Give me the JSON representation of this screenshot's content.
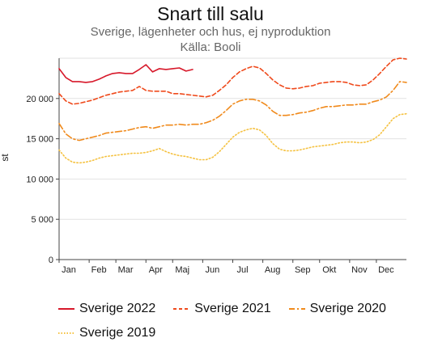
{
  "chart_data": {
    "type": "line",
    "title": "Snart till salu",
    "subtitle": "Sverige, lägenheter och hus, ej nyproduktion",
    "source": "Källa: Booli",
    "ylabel": "st",
    "xlabel": "",
    "ylim": [
      0,
      25000
    ],
    "yticks": [
      {
        "value": 0,
        "label": "0"
      },
      {
        "value": 5000,
        "label": "5 000"
      },
      {
        "value": 10000,
        "label": "10 000"
      },
      {
        "value": 15000,
        "label": "15 000"
      },
      {
        "value": 20000,
        "label": "20 000"
      }
    ],
    "xlim": [
      0,
      52
    ],
    "xticks": [
      {
        "value": 0,
        "label": "Jan"
      },
      {
        "value": 4.5,
        "label": "Feb"
      },
      {
        "value": 8.5,
        "label": "Mar"
      },
      {
        "value": 13,
        "label": "Apr"
      },
      {
        "value": 17,
        "label": "Maj"
      },
      {
        "value": 21.5,
        "label": "Jun"
      },
      {
        "value": 26,
        "label": "Jul"
      },
      {
        "value": 30.5,
        "label": "Aug"
      },
      {
        "value": 35,
        "label": "Sep"
      },
      {
        "value": 39,
        "label": "Okt"
      },
      {
        "value": 43.5,
        "label": "Nov"
      },
      {
        "value": 47.5,
        "label": "Dec"
      }
    ],
    "legend": "bottom",
    "series": [
      {
        "name": "Sverige 2022",
        "color": "#d7182a",
        "dash": "solid",
        "x": [
          0,
          1,
          2,
          3,
          4,
          5,
          6,
          7,
          8,
          9,
          10,
          11,
          12,
          13,
          14,
          15,
          16,
          17,
          18,
          19,
          20
        ],
        "values": [
          23700,
          22600,
          22100,
          22100,
          22000,
          22100,
          22400,
          22800,
          23100,
          23200,
          23100,
          23100,
          23600,
          24200,
          23300,
          23700,
          23600,
          23700,
          23800,
          23400,
          23600
        ]
      },
      {
        "name": "Sverige 2021",
        "color": "#ef4a1c",
        "dash": "dashed",
        "x": [
          0,
          1,
          2,
          3,
          4,
          5,
          6,
          7,
          8,
          9,
          10,
          11,
          12,
          13,
          14,
          15,
          16,
          17,
          18,
          19,
          20,
          21,
          22,
          23,
          24,
          25,
          26,
          27,
          28,
          29,
          30,
          31,
          32,
          33,
          34,
          35,
          36,
          37,
          38,
          39,
          40,
          41,
          42,
          43,
          44,
          45,
          46,
          47,
          48,
          49,
          50,
          51,
          52
        ],
        "values": [
          20600,
          19700,
          19300,
          19400,
          19600,
          19800,
          20100,
          20400,
          20600,
          20800,
          20900,
          21000,
          21500,
          21000,
          20900,
          20900,
          20900,
          20600,
          20600,
          20500,
          20400,
          20300,
          20200,
          20400,
          21000,
          21700,
          22600,
          23300,
          23700,
          24000,
          23800,
          23100,
          22300,
          21700,
          21300,
          21200,
          21300,
          21500,
          21600,
          21900,
          22000,
          22100,
          22100,
          22000,
          21700,
          21600,
          21700,
          22300,
          23100,
          24000,
          24800,
          25000,
          24900
        ]
      },
      {
        "name": "Sverige 2020",
        "color": "#f08a1c",
        "dash": "dashdot",
        "x": [
          0,
          1,
          2,
          3,
          4,
          5,
          6,
          7,
          8,
          9,
          10,
          11,
          12,
          13,
          14,
          15,
          16,
          17,
          18,
          19,
          20,
          21,
          22,
          23,
          24,
          25,
          26,
          27,
          28,
          29,
          30,
          31,
          32,
          33,
          34,
          35,
          36,
          37,
          38,
          39,
          40,
          41,
          42,
          43,
          44,
          45,
          46,
          47,
          48,
          49,
          50,
          51,
          52
        ],
        "values": [
          16900,
          15600,
          15000,
          14800,
          15000,
          15200,
          15400,
          15700,
          15800,
          15900,
          16000,
          16200,
          16400,
          16500,
          16300,
          16500,
          16700,
          16700,
          16800,
          16700,
          16800,
          16800,
          17000,
          17300,
          17800,
          18500,
          19300,
          19700,
          19900,
          19900,
          19700,
          19200,
          18400,
          17900,
          17900,
          18000,
          18200,
          18300,
          18500,
          18800,
          19000,
          19000,
          19100,
          19200,
          19200,
          19300,
          19300,
          19600,
          19800,
          20200,
          21000,
          22100,
          22000
        ]
      },
      {
        "name": "Sverige 2019",
        "color": "#f5c242",
        "dash": "dotted",
        "x": [
          0,
          1,
          2,
          3,
          4,
          5,
          6,
          7,
          8,
          9,
          10,
          11,
          12,
          13,
          14,
          15,
          16,
          17,
          18,
          19,
          20,
          21,
          22,
          23,
          24,
          25,
          26,
          27,
          28,
          29,
          30,
          31,
          32,
          33,
          34,
          35,
          36,
          37,
          38,
          39,
          40,
          41,
          42,
          43,
          44,
          45,
          46,
          47,
          48,
          49,
          50,
          51,
          52
        ],
        "values": [
          13600,
          12600,
          12100,
          12000,
          12100,
          12300,
          12600,
          12800,
          12900,
          13000,
          13100,
          13200,
          13200,
          13300,
          13500,
          13800,
          13400,
          13100,
          12900,
          12800,
          12600,
          12400,
          12400,
          12700,
          13400,
          14300,
          15200,
          15800,
          16100,
          16300,
          16100,
          15400,
          14400,
          13700,
          13500,
          13500,
          13600,
          13800,
          14000,
          14100,
          14200,
          14300,
          14500,
          14600,
          14600,
          14500,
          14600,
          14900,
          15500,
          16500,
          17500,
          18000,
          18100
        ]
      }
    ]
  }
}
